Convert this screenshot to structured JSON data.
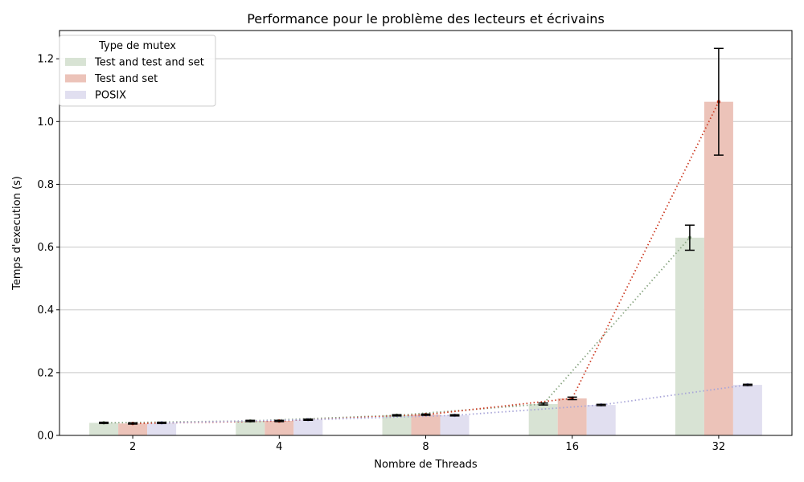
{
  "chart_data": {
    "type": "bar",
    "title": "Performance pour le problème des lecteurs et écrivains",
    "xlabel": "Nombre de Threads",
    "ylabel": "Temps d'execution (s)",
    "categories": [
      "2",
      "4",
      "8",
      "16",
      "32"
    ],
    "ylim": [
      0,
      1.29
    ],
    "yticks": [
      "0.0",
      "0.2",
      "0.4",
      "0.6",
      "0.8",
      "1.0",
      "1.2"
    ],
    "grid": "horizontal",
    "legend": {
      "title": "Type de mutex",
      "placement": "top-left"
    },
    "series": [
      {
        "name": "Test and test and set",
        "values": [
          0.04,
          0.046,
          0.064,
          0.1,
          0.63
        ],
        "errors": [
          0.002,
          0.002,
          0.002,
          0.003,
          0.04
        ],
        "color": "#d8e3d4",
        "line_color": "#8aa683"
      },
      {
        "name": "Test and set",
        "values": [
          0.038,
          0.046,
          0.066,
          0.118,
          1.063
        ],
        "errors": [
          0.002,
          0.002,
          0.002,
          0.004,
          0.17
        ],
        "color": "#ecc3b9",
        "line_color": "#cc3a22"
      },
      {
        "name": "POSIX",
        "values": [
          0.04,
          0.05,
          0.064,
          0.097,
          0.161
        ],
        "errors": [
          0.002,
          0.002,
          0.002,
          0.002,
          0.002
        ],
        "color": "#e1dff0",
        "line_color": "#a8a5d8"
      }
    ]
  }
}
